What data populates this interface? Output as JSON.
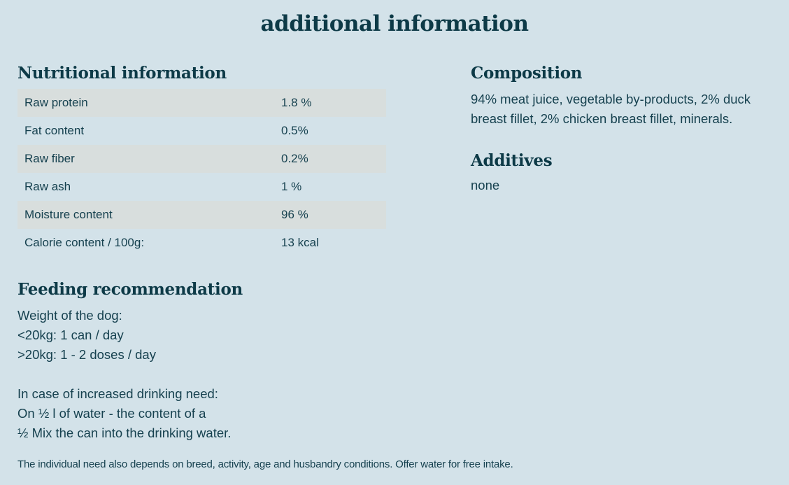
{
  "page": {
    "title": "additional information"
  },
  "nutrition": {
    "heading": "Nutritional information",
    "rows": [
      {
        "label": "Raw protein",
        "value": "1.8 %"
      },
      {
        "label": "Fat content",
        "value": "0.5%"
      },
      {
        "label": "Raw fiber",
        "value": "0.2%"
      },
      {
        "label": "Raw ash",
        "value": "1 %"
      },
      {
        "label": "Moisture content",
        "value": "96 %"
      },
      {
        "label": "Calorie content / 100g:",
        "value": "13 kcal"
      }
    ]
  },
  "composition": {
    "heading": "Composition",
    "text": "94% meat juice, vegetable by-products, 2% duck breast fillet, 2% chicken breast fillet, minerals."
  },
  "additives": {
    "heading": "Additives",
    "text": "none"
  },
  "feeding": {
    "heading": "Feeding recommendation",
    "lines": [
      "Weight of the dog:",
      "<20kg: 1 can / day",
      ">20kg: 1 - 2 doses / day",
      "",
      "In case of increased drinking need:",
      "On ½ l of water - the content of a",
      "½ Mix the can into the drinking water."
    ]
  },
  "footnote": "The individual need also depends on breed, activity, age and husbandry conditions. Offer water for free intake.",
  "colors": {
    "background": "#d3e2e9",
    "row_shade": "#d8dedd",
    "body_text": "#16414f",
    "heading_text": "#0d3a47"
  }
}
